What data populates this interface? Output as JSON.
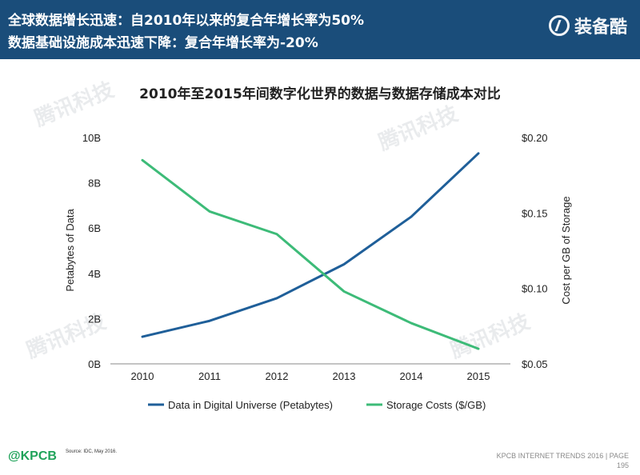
{
  "header": {
    "line1": "全球数据增长迅速：自2010年以来的复合年增长率为50%",
    "line2": "数据基础设施成本迅速下降：复合年增长率为-20%",
    "brand": "装备酷"
  },
  "footer": {
    "left": "@KPCB",
    "source": "Source: IDC, May 2016.",
    "right_line1": "KPCB INTERNET TRENDS 2016  |  PAGE",
    "right_line2": "195"
  },
  "colors": {
    "header_bg": "#1a4d7a",
    "series_data": "#1f5f99",
    "series_cost": "#3dbb78"
  },
  "chart_data": {
    "type": "line",
    "title": "2010年至2015年间数字化世界的数据与数据存储成本对比",
    "x": [
      "2010",
      "2011",
      "2012",
      "2013",
      "2014",
      "2015"
    ],
    "y_left": {
      "label": "Petabytes of Data",
      "range": [
        0,
        10
      ],
      "ticks": [
        0,
        2,
        4,
        6,
        8,
        10
      ],
      "tick_labels": [
        "0B",
        "2B",
        "4B",
        "6B",
        "8B",
        "10B"
      ]
    },
    "y_right": {
      "label": "Cost per GB of Storage",
      "range": [
        0.05,
        0.2
      ],
      "ticks": [
        0.05,
        0.1,
        0.15,
        0.2
      ],
      "tick_labels": [
        "$0.05",
        "$0.10",
        "$0.15",
        "$0.20"
      ]
    },
    "series": [
      {
        "name": "Data in Digital Universe (Petabytes)",
        "axis": "left",
        "values": [
          1.2,
          1.9,
          2.9,
          4.4,
          6.5,
          9.3
        ]
      },
      {
        "name": "Storage Costs ($/GB)",
        "axis": "right",
        "values": [
          0.185,
          0.151,
          0.136,
          0.098,
          0.077,
          0.06
        ]
      }
    ],
    "grid": false,
    "legend": "bottom"
  }
}
